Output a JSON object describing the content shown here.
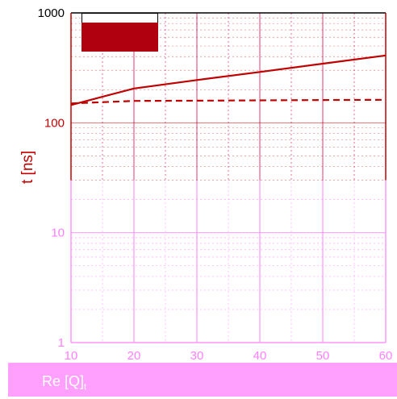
{
  "chart_data": {
    "type": "line",
    "x": [
      10,
      20,
      30,
      40,
      50,
      60
    ],
    "xlim": [
      10,
      60
    ],
    "ylim": [
      1,
      1000
    ],
    "yscale": "log",
    "xlabel": "Re [Q]",
    "xlabel_sub": "t",
    "ylabel": "t [ns]",
    "xticks": [
      "10",
      "20",
      "30",
      "40",
      "50",
      "60"
    ],
    "yticks": [
      "1",
      "10",
      "100",
      "1000"
    ],
    "grid": true,
    "legend_position": "top-left",
    "series": [
      {
        "style": "solid",
        "color": "#c00000",
        "values": [
          145,
          205,
          245,
          290,
          345,
          410
        ]
      },
      {
        "style": "dashed",
        "color": "#c00000",
        "values": [
          150,
          158,
          159,
          160,
          161,
          162
        ]
      }
    ]
  },
  "colors": {
    "accent": "#c00000",
    "faint": "#ff80ff",
    "band": "#ffa0ff"
  }
}
